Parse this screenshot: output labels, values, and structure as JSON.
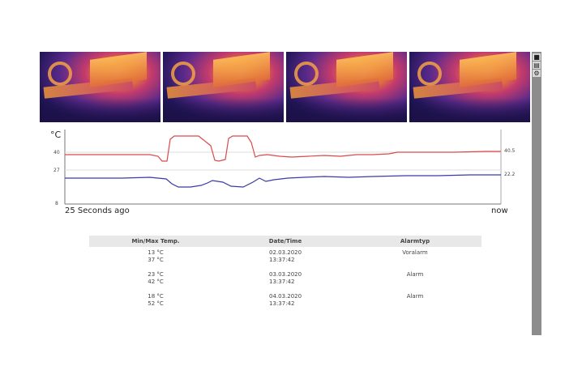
{
  "chart": {
    "unit": "°C",
    "y_ticks": [
      "40",
      "27",
      "8"
    ],
    "x_start_label": "25 Seconds ago",
    "x_end_label": "now",
    "red_end_value": "40.5",
    "blue_end_value": "22.2",
    "colors": {
      "red": "#d94a4a",
      "blue": "#3a3aa8",
      "grid": "#dddddd"
    }
  },
  "table": {
    "headers": {
      "minmax": "Min/Max Temp.",
      "date": "Date/Time",
      "type": "Alarmtyp"
    },
    "rows": [
      {
        "min": "13 °C",
        "max": "37 °C",
        "date": "02.03.2020",
        "time": "13:37:42",
        "type": "Voralarm"
      },
      {
        "min": "23 °C",
        "max": "42 °C",
        "date": "03.03.2020",
        "time": "13:37:42",
        "type": "Alarm"
      },
      {
        "min": "18 °C",
        "max": "52 °C",
        "date": "04.03.2020",
        "time": "13:37:42",
        "type": "Alarm"
      }
    ]
  },
  "sidebar": {
    "icons": [
      "camera-icon",
      "chart-icon",
      "settings-icon"
    ]
  }
}
